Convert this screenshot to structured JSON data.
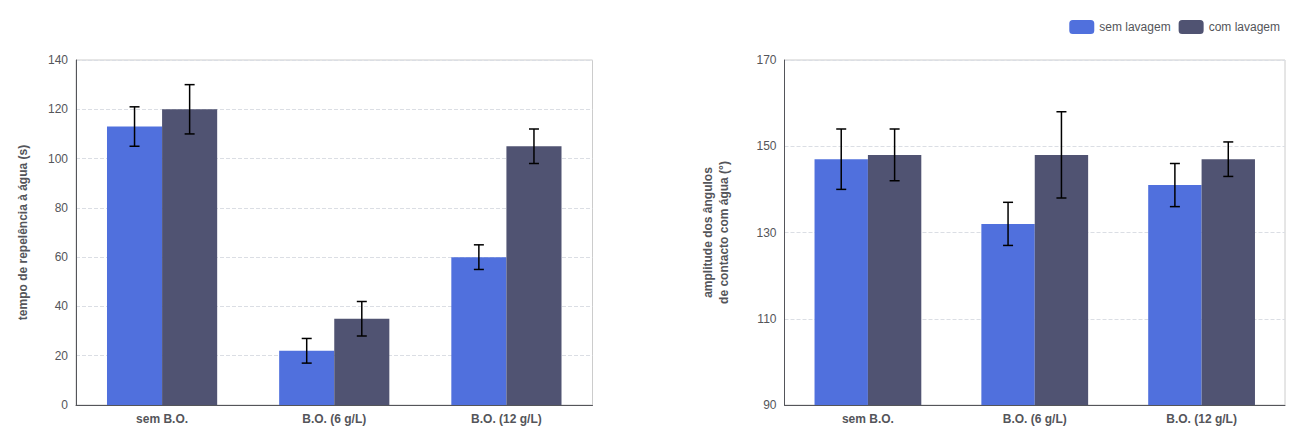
{
  "chart_data": [
    {
      "type": "bar",
      "categories": [
        "sem B.O.",
        "B.O. (6 g/L)",
        "B.O. (12 g/L)"
      ],
      "series": [
        {
          "name": "sem lavagem",
          "values": [
            113,
            22,
            60
          ],
          "errors": [
            8,
            5,
            5
          ]
        },
        {
          "name": "com lavagem",
          "values": [
            120,
            35,
            105
          ],
          "errors": [
            10,
            7,
            7
          ]
        }
      ],
      "ylabel": "tempo de repelência à água (s)",
      "ylim": [
        0,
        140
      ],
      "yticks": [
        0,
        20,
        40,
        60,
        80,
        100,
        120,
        140
      ],
      "grid": true
    },
    {
      "type": "bar",
      "categories": [
        "sem B.O.",
        "B.O. (6 g/L)",
        "B.O. (12 g/L)"
      ],
      "series": [
        {
          "name": "sem lavagem",
          "values": [
            147,
            132,
            141
          ],
          "errors": [
            7,
            5,
            5
          ]
        },
        {
          "name": "com lavagem",
          "values": [
            148,
            148,
            147
          ],
          "errors": [
            6,
            10,
            4
          ]
        }
      ],
      "ylabel": "amplitude dos ângulos\nde contacto com água (°)",
      "ylim": [
        90,
        170
      ],
      "yticks": [
        90,
        110,
        130,
        150,
        170
      ],
      "grid": true,
      "legend": "upper right"
    }
  ]
}
